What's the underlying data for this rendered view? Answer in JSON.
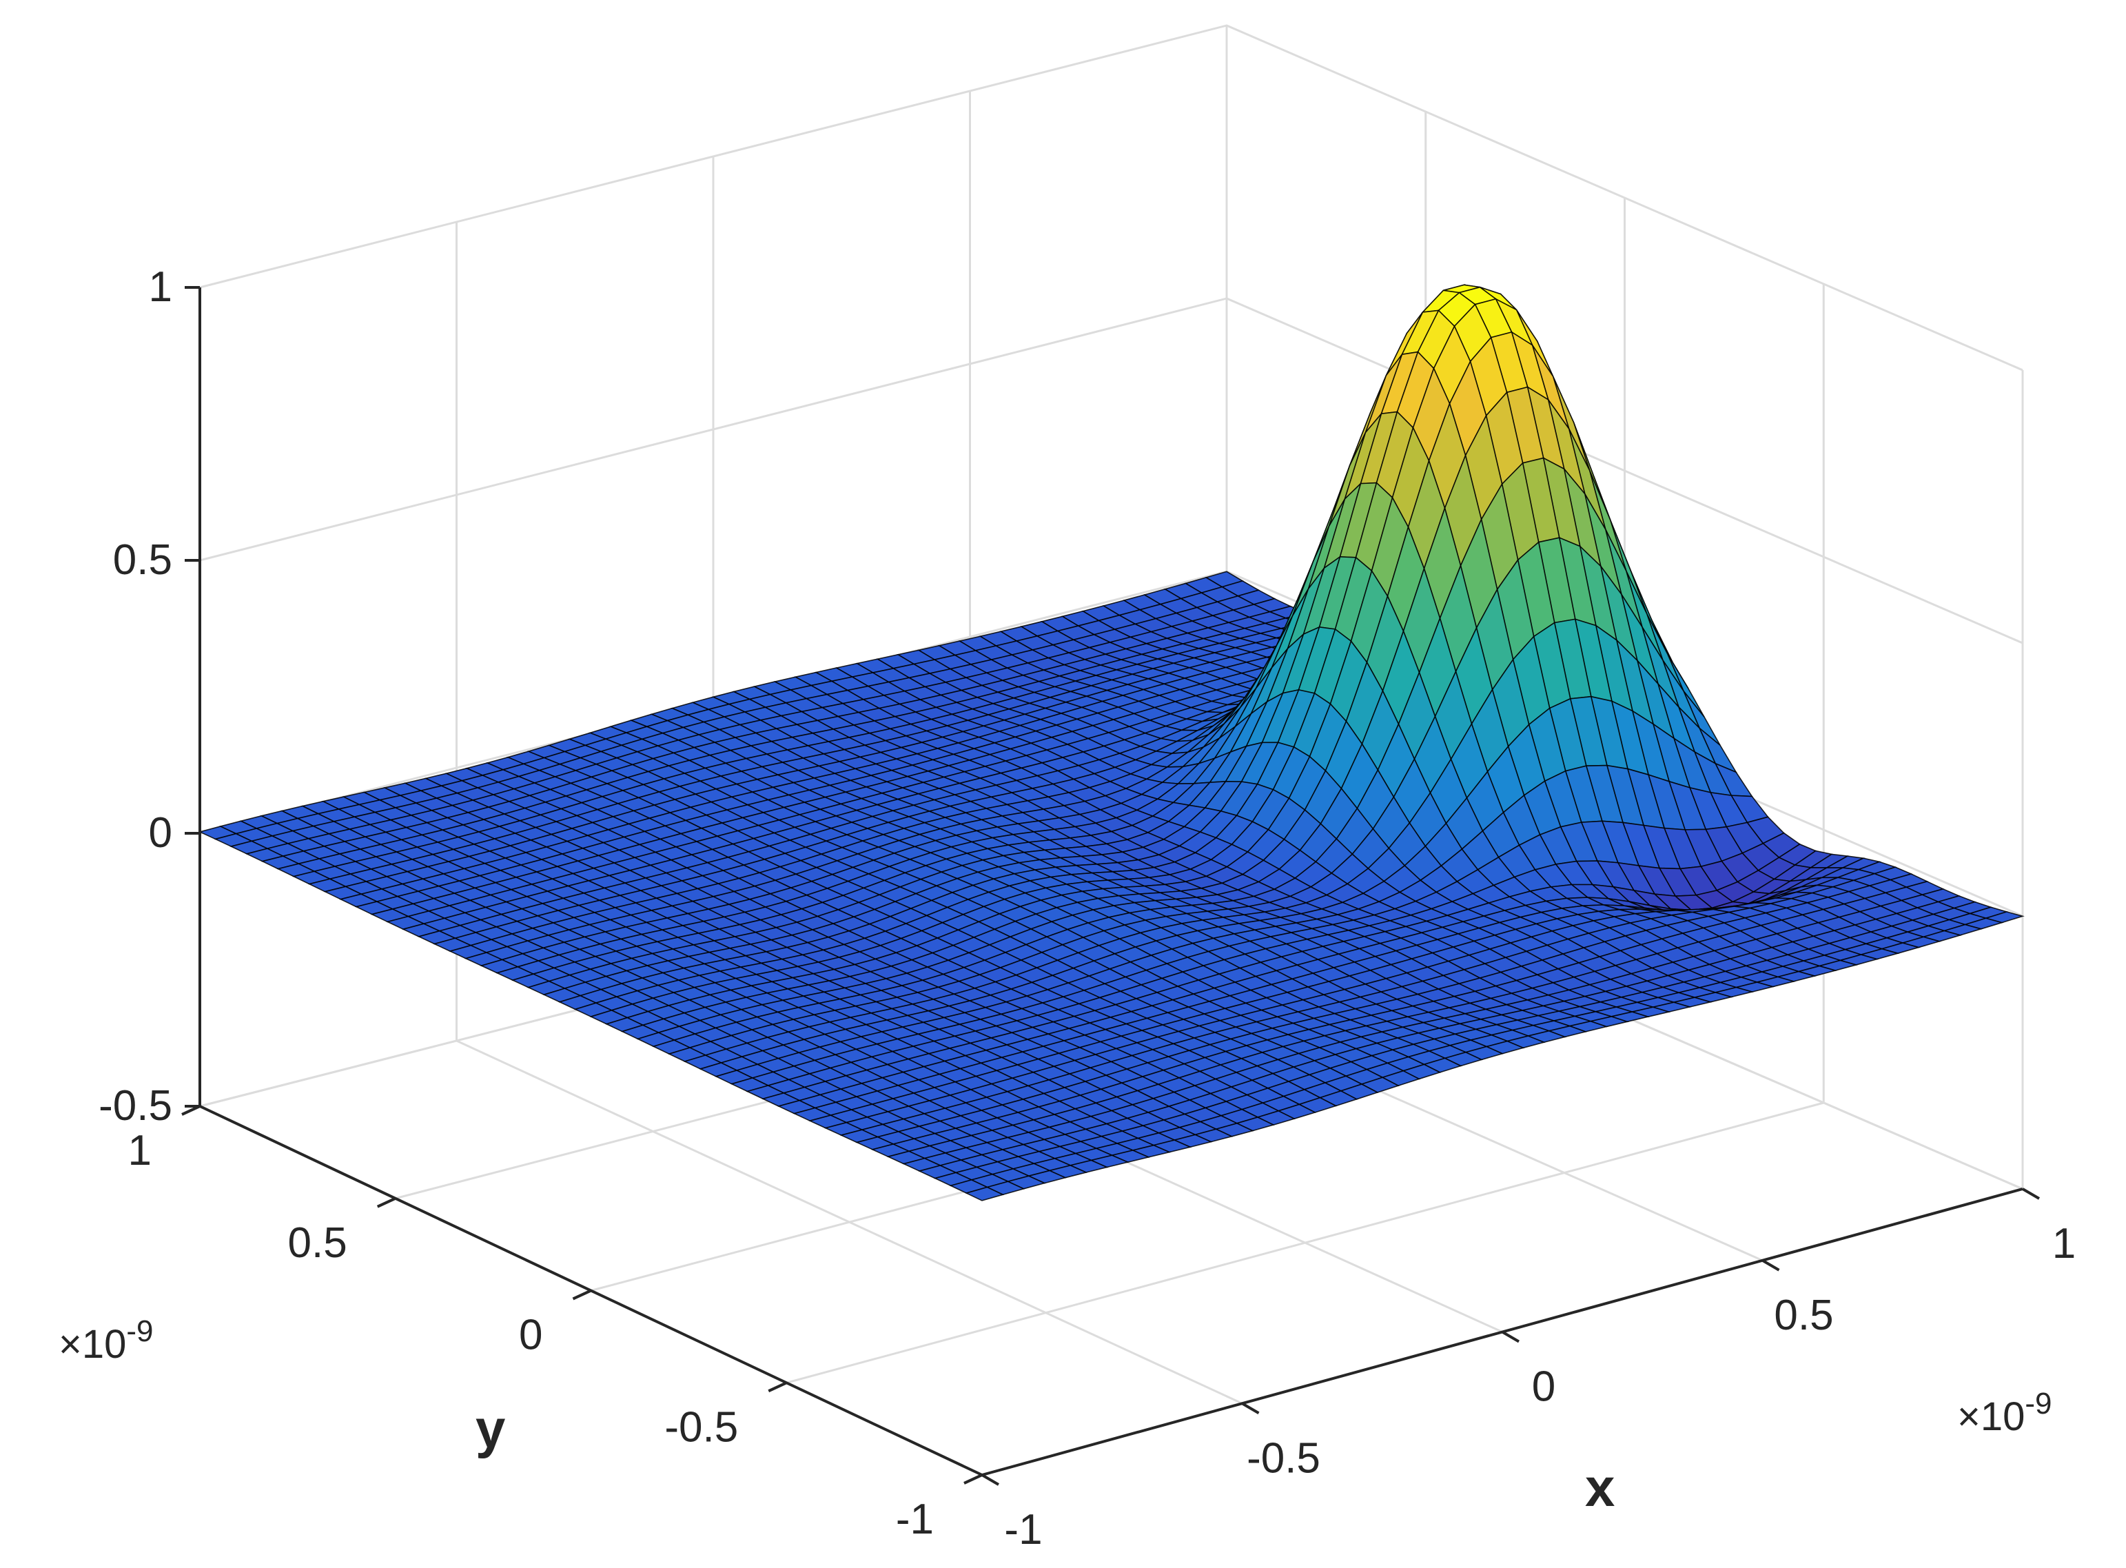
{
  "chart_data": {
    "type": "surface",
    "title": "",
    "xlabel": "x",
    "ylabel": "y",
    "zlabel": "",
    "x_multiplier": "×10-9",
    "y_multiplier": "×10-9",
    "x_multiplier_parts": {
      "base": "×10",
      "exp": "-9"
    },
    "y_multiplier_parts": {
      "base": "×10",
      "exp": "-9"
    },
    "xlim": [
      -1,
      1
    ],
    "ylim": [
      -1,
      1
    ],
    "zlim": [
      -0.5,
      1
    ],
    "x_ticks": [
      -1,
      -0.5,
      0,
      0.5,
      1
    ],
    "y_ticks": [
      -1,
      -0.5,
      0,
      0.5,
      1
    ],
    "z_ticks": [
      -0.5,
      0,
      0.5,
      1
    ],
    "x_tick_labels": [
      "-1",
      "-0.5",
      "0",
      "0.5",
      "1"
    ],
    "y_tick_labels": [
      "-1",
      "-0.5",
      "0",
      "0.5",
      "1"
    ],
    "z_tick_labels": [
      "-0.5",
      "0",
      "0.5",
      "1"
    ],
    "grid": true,
    "colormap": "parula",
    "colormap_stops": [
      "#3e26a8",
      "#2b5bd6",
      "#1a8ad3",
      "#1faaab",
      "#52b971",
      "#b0bc3c",
      "#f2c230",
      "#f9fb0e"
    ],
    "edge_color": "#000000",
    "mesh_resolution": 50,
    "peak": {
      "x": 0.7,
      "y": 0.0,
      "z": 0.9
    },
    "surface_description_for_rendering": {
      "components": [
        {
          "kind": "gaussian",
          "cx": 0.7,
          "cy": 0.0,
          "sx": 0.18,
          "sy": 0.18,
          "amp": 0.9
        },
        {
          "kind": "ripple",
          "amp": 0.07
        },
        {
          "kind": "trough",
          "cx": 0.8,
          "cy": -0.45,
          "sx": 0.15,
          "sy": 0.12,
          "amp": -0.12
        }
      ]
    }
  }
}
